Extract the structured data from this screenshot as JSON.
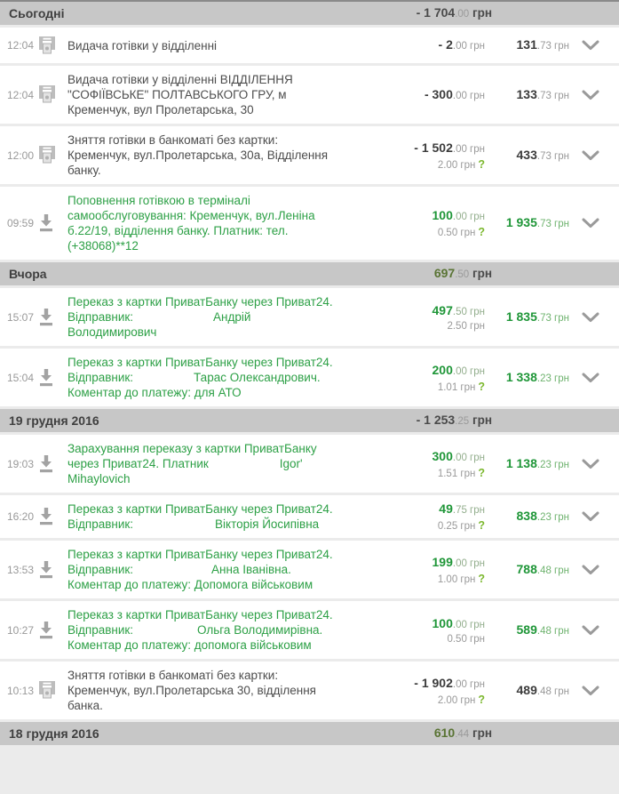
{
  "currency": "грн",
  "labels": {
    "fee_question": "?"
  },
  "colors": {
    "green_text": "#2da046",
    "green_bold": "#1f9638",
    "fee_question_green": "#7cb82f",
    "section_header_bg": "#c7c7c7",
    "positive_total": "#5a7434",
    "negative_total": "#4a4a4a"
  },
  "sections": [
    {
      "title": "Сьогодні",
      "total": {
        "main": "- 1 704",
        "frac": ".00",
        "positive": false
      },
      "rows": [
        {
          "time": "12:04",
          "icon": "atm",
          "green": false,
          "desc": [
            {
              "t": "Видача готівки у відділенні"
            }
          ],
          "amount": {
            "main": "- 2",
            "frac": ".00",
            "positive": false
          },
          "fee": null,
          "balance": {
            "main": "131",
            "frac": ".73",
            "green": false
          }
        },
        {
          "time": "12:04",
          "icon": "atm",
          "green": false,
          "desc": [
            {
              "t": "Видача готівки у відділенні ВІДДІЛЕННЯ \"СОФІЇВСЬКЕ\" ПОЛТАВСЬКОГО ГРУ, м Кременчук, вул Пролетарська, 30"
            }
          ],
          "amount": {
            "main": "- 300",
            "frac": ".00",
            "positive": false
          },
          "fee": null,
          "balance": {
            "main": "133",
            "frac": ".73",
            "green": false
          }
        },
        {
          "time": "12:00",
          "icon": "atm",
          "green": false,
          "desc": [
            {
              "t": "Зняття готівки в банкоматі без картки: Кременчук, вул.Пролетарська, 30а, Відділення банку."
            }
          ],
          "amount": {
            "main": "- 1 502",
            "frac": ".00",
            "positive": false
          },
          "fee": {
            "amount": "2.00",
            "q": true
          },
          "balance": {
            "main": "433",
            "frac": ".73",
            "green": false
          }
        },
        {
          "time": "09:59",
          "icon": "deposit",
          "green": true,
          "desc": [
            {
              "t": "Поповнення готівкою в терміналі самообслуговування: Кременчук, вул.Леніна б.22/19, відділення банку. Платник: тел. (+38068)**12"
            }
          ],
          "amount": {
            "main": "100",
            "frac": ".00",
            "positive": true
          },
          "fee": {
            "amount": "0.50",
            "q": true
          },
          "balance": {
            "main": "1 935",
            "frac": ".73",
            "green": true
          }
        }
      ]
    },
    {
      "title": "Вчора",
      "total": {
        "main": "697",
        "frac": ".50",
        "positive": true
      },
      "rows": [
        {
          "time": "15:07",
          "icon": "deposit",
          "green": true,
          "desc": [
            {
              "t": "Переказ з картки ПриватБанку через Приват24. Відправник:"
            },
            {
              "gap": 90
            },
            {
              "t": "Андрій Володимирович"
            }
          ],
          "amount": {
            "main": "497",
            "frac": ".50",
            "positive": true
          },
          "fee": {
            "amount": "2.50",
            "q": false
          },
          "balance": {
            "main": "1 835",
            "frac": ".73",
            "green": true
          }
        },
        {
          "time": "15:04",
          "icon": "deposit",
          "green": true,
          "desc": [
            {
              "t": "Переказ з картки ПриватБанку через Приват24. Відправник:"
            },
            {
              "gap": 68
            },
            {
              "t": "Тарас Олександрович. Коментар до платежу: для АТО"
            }
          ],
          "amount": {
            "main": "200",
            "frac": ".00",
            "positive": true
          },
          "fee": {
            "amount": "1.01",
            "q": true
          },
          "balance": {
            "main": "1 338",
            "frac": ".23",
            "green": true
          }
        }
      ]
    },
    {
      "title": "19 грудня 2016",
      "total": {
        "main": "- 1 253",
        "frac": ".25",
        "positive": false
      },
      "rows": [
        {
          "time": "19:03",
          "icon": "deposit",
          "green": true,
          "desc": [
            {
              "t": "Зарахування переказу з картки ПриватБанку через Приват24. Платник"
            },
            {
              "gap": 80
            },
            {
              "t": "Igor' Mihaylovich"
            }
          ],
          "amount": {
            "main": "300",
            "frac": ".00",
            "positive": true
          },
          "fee": {
            "amount": "1.51",
            "q": true
          },
          "balance": {
            "main": "1 138",
            "frac": ".23",
            "green": true
          }
        },
        {
          "time": "16:20",
          "icon": "deposit",
          "green": true,
          "desc": [
            {
              "t": "Переказ з картки ПриватБанку через Приват24. Відправник:"
            },
            {
              "gap": 92
            },
            {
              "t": "Вікторія Йосипівна"
            }
          ],
          "amount": {
            "main": "49",
            "frac": ".75",
            "positive": true
          },
          "fee": {
            "amount": "0.25",
            "q": true
          },
          "balance": {
            "main": "838",
            "frac": ".23",
            "green": true
          }
        },
        {
          "time": "13:53",
          "icon": "deposit",
          "green": true,
          "desc": [
            {
              "t": "Переказ з картки ПриватБанку через Приват24. Відправник:"
            },
            {
              "gap": 88
            },
            {
              "t": "Анна Іванівна. Коментар до платежу: Допомога військовим"
            }
          ],
          "amount": {
            "main": "199",
            "frac": ".00",
            "positive": true
          },
          "fee": {
            "amount": "1.00",
            "q": true
          },
          "balance": {
            "main": "788",
            "frac": ".48",
            "green": true
          }
        },
        {
          "time": "10:27",
          "icon": "deposit",
          "green": true,
          "desc": [
            {
              "t": "Переказ з картки ПриватБанку через Приват24. Відправник:"
            },
            {
              "gap": 72
            },
            {
              "t": "Ольга Володимирівна. Коментар до платежу: допомога військовим"
            }
          ],
          "amount": {
            "main": "100",
            "frac": ".00",
            "positive": true
          },
          "fee": {
            "amount": "0.50",
            "q": false
          },
          "balance": {
            "main": "589",
            "frac": ".48",
            "green": true
          }
        },
        {
          "time": "10:13",
          "icon": "atm",
          "green": false,
          "desc": [
            {
              "t": "Зняття готівки в банкоматі без картки: Кременчук, вул.Пролетарська 30, відділення банка."
            }
          ],
          "amount": {
            "main": "- 1 902",
            "frac": ".00",
            "positive": false
          },
          "fee": {
            "amount": "2.00",
            "q": true
          },
          "balance": {
            "main": "489",
            "frac": ".48",
            "green": false
          }
        }
      ]
    },
    {
      "title": "18 грудня 2016",
      "total": {
        "main": "610",
        "frac": ".44",
        "positive": true
      },
      "rows": []
    }
  ]
}
